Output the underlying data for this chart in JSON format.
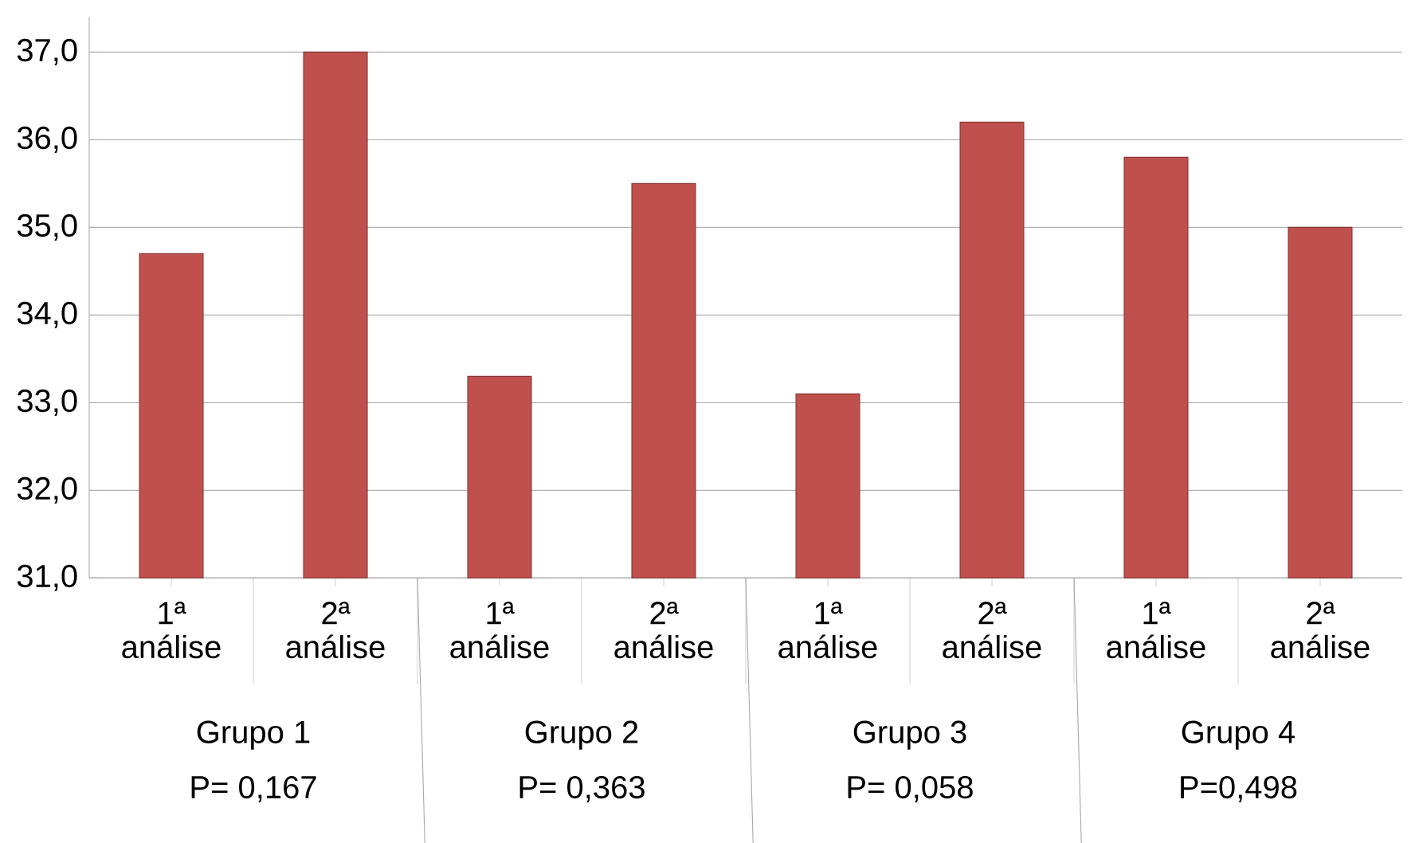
{
  "chart_data": {
    "type": "bar",
    "categories": [
      "1ª análise",
      "2ª análise",
      "1ª análise",
      "2ª análise",
      "1ª análise",
      "2ª análise",
      "1ª análise",
      "2ª análise"
    ],
    "values": [
      34.7,
      37.0,
      33.3,
      35.5,
      33.1,
      36.2,
      35.8,
      35.0
    ],
    "color": "#c0504d",
    "ylim": [
      31,
      37.4
    ],
    "yticks": [
      {
        "value": 31,
        "label": "31,0"
      },
      {
        "value": 32,
        "label": "32,0"
      },
      {
        "value": 33,
        "label": "33,0"
      },
      {
        "value": 34,
        "label": "34,0"
      },
      {
        "value": 35,
        "label": "35,0"
      },
      {
        "value": 36,
        "label": "36,0"
      },
      {
        "value": 37,
        "label": "37,0"
      }
    ],
    "grid": "y",
    "annotations": [
      "Grupo 1",
      "P= 0,167",
      "Grupo 2",
      "P= 0,363",
      "Grupo 3",
      "P= 0,058",
      "Grupo 4",
      "P=0,498"
    ]
  }
}
